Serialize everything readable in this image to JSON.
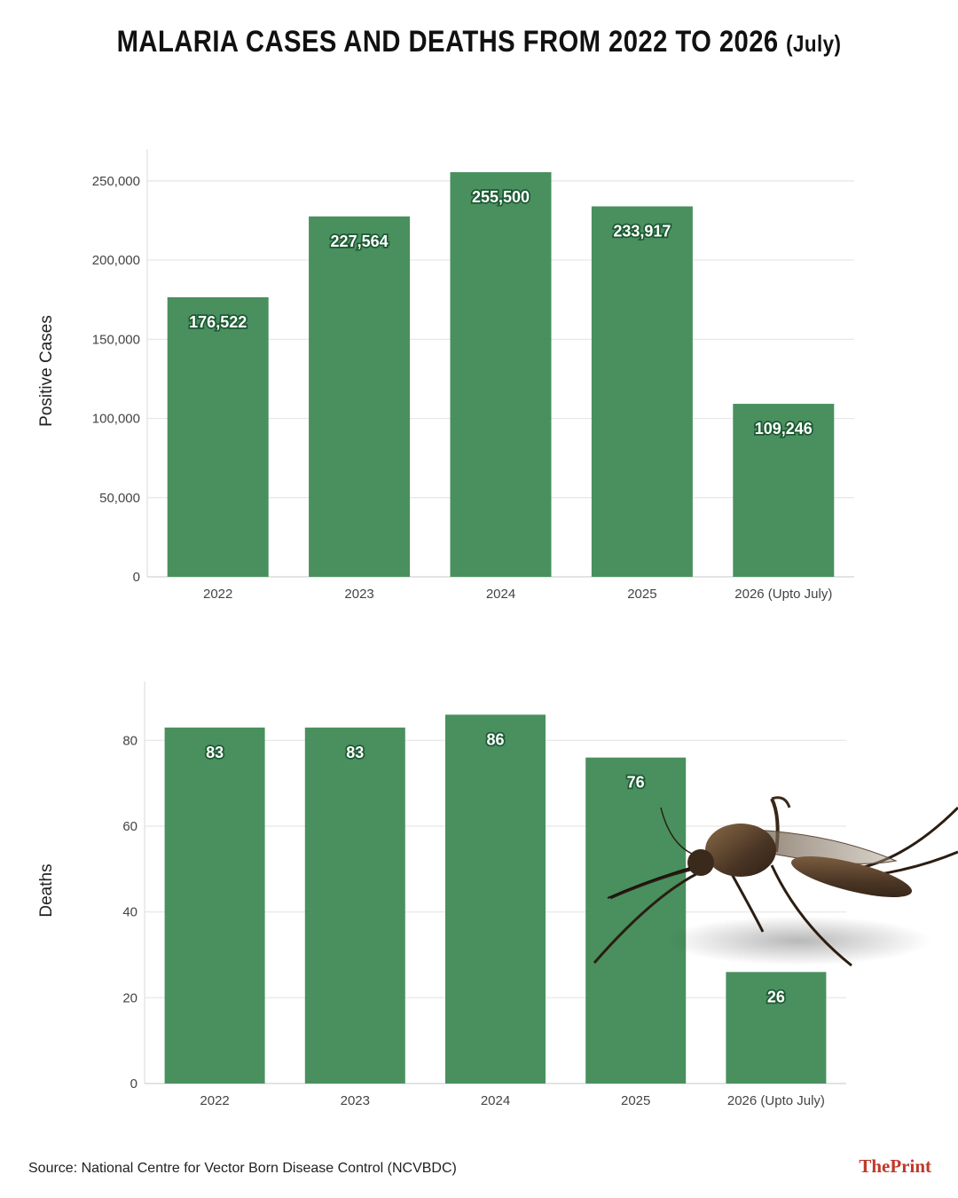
{
  "title": {
    "main": "MALARIA CASES AND DEATHS FROM 2022 TO 2026",
    "suffix": "(July)"
  },
  "chart_data": [
    {
      "type": "bar",
      "categories": [
        "2022",
        "2023",
        "2024",
        "2025",
        "2026 (Upto July)"
      ],
      "values": [
        176522,
        227564,
        255500,
        233917,
        109246
      ],
      "value_labels": [
        "176,522",
        "227,564",
        "255,500",
        "233,917",
        "109,246"
      ],
      "ylabel": "Positive Cases",
      "ylim": [
        0,
        260000
      ],
      "yticks": [
        0,
        50000,
        100000,
        150000,
        200000,
        250000
      ],
      "ytick_labels": [
        "0",
        "50,000",
        "100,000",
        "150,000",
        "200,000",
        "250,000"
      ],
      "grid": true,
      "bar_color": "#3f8a55"
    },
    {
      "type": "bar",
      "categories": [
        "2022",
        "2023",
        "2024",
        "2025",
        "2026 (Upto July)"
      ],
      "values": [
        83,
        83,
        86,
        76,
        26
      ],
      "value_labels": [
        "83",
        "83",
        "86",
        "76",
        "26"
      ],
      "ylabel": "Deaths",
      "ylim": [
        0,
        90
      ],
      "yticks": [
        0,
        20,
        40,
        60,
        80
      ],
      "ytick_labels": [
        "0",
        "20",
        "40",
        "60",
        "80"
      ],
      "grid": true,
      "bar_color": "#3f8a55"
    }
  ],
  "source": "Source: National Centre for Vector Born Disease Control (NCVBDC)",
  "brand": "ThePrint",
  "decoration": {
    "icon": "mosquito-illustration"
  }
}
